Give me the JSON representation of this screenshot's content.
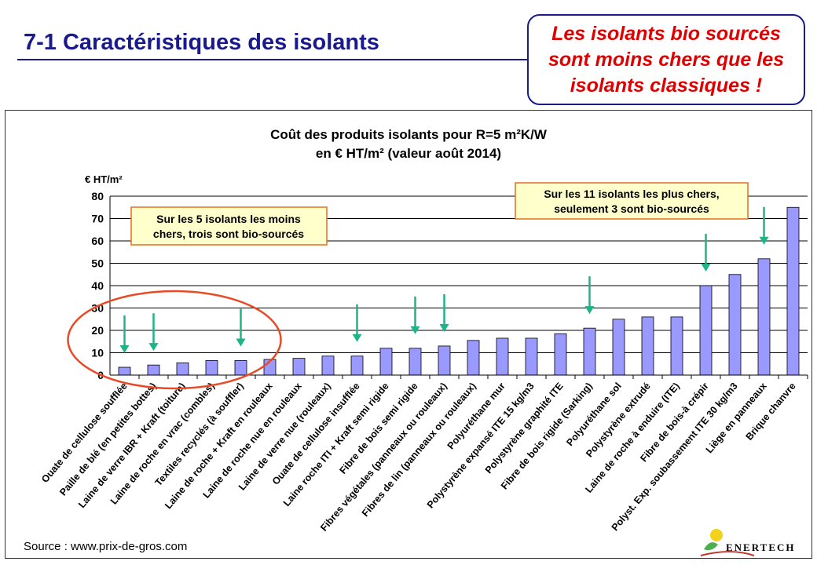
{
  "slide": {
    "title": "7-1 Caractéristiques des isolants",
    "callout_line1": "Les isolants bio sourcés",
    "callout_line2": "sont moins chers que les",
    "callout_line3": "isolants classiques !"
  },
  "footer": {
    "source": "Source : www.prix-de-gros.com",
    "logo_text": "ENERTECH"
  },
  "colors": {
    "bar": "#9999ff",
    "arrow": "#1fb38a",
    "ellipse": "#e84a25",
    "title": "#1a1a8c",
    "callout_text": "#e00000",
    "annotation_fill": "#ffffcc",
    "annotation_border": "#e07020"
  },
  "chart_data": {
    "type": "bar",
    "title_line1": "Coût des produits isolants pour R=5 m²K/W",
    "title_line2": "en € HT/m² (valeur août 2014)",
    "ylabel": "€ HT/m²",
    "ylim": [
      0,
      80
    ],
    "yticks": [
      0,
      10,
      20,
      30,
      40,
      50,
      60,
      70,
      80
    ],
    "grid": true,
    "categories": [
      "Ouate de cellulose soufflée",
      "Paille de blé (en petites bottes)",
      "Laine de verre IBR + Kraft (toiture)",
      "Laine de roche en vrac (combles)",
      "Textiles recyclés (à souffler)",
      "Laine de roche + Kraft en rouleaux",
      "Laine de roche nue en rouleaux",
      "Laine de verre nue (rouleaux)",
      "Ouate de cellulose insufflée",
      "Laine roche ITI + Kraft semi rigide",
      "Fibre de bois semi rigide",
      "Fibres végétales  (panneaux ou rouleaux)",
      "Fibres de lin (panneaux ou rouleaux)",
      "Polyuréthane mur",
      "Polystyrène expansé ITE 15 kg/m3",
      "Polystyrène graphité ITE",
      "Fibre de bois rigide (Sarking)",
      "Polyuréthane sol",
      "Polystyrène extrudé",
      "Laine de roche à enduire (ITE)",
      "Fibre de bois-à crépir",
      "Polyst. Exp. soubassement ITE 30 kg/m3",
      "Liège en panneaux",
      "Brique chanvre"
    ],
    "values": [
      3.5,
      4.5,
      5.5,
      6.5,
      6.5,
      7,
      7.5,
      8.5,
      8.5,
      12,
      12,
      13,
      15.5,
      16.5,
      16.5,
      18.5,
      21,
      25,
      26,
      26,
      40,
      45,
      52,
      75
    ],
    "bio_sourced_indices": [
      0,
      1,
      4,
      8,
      10,
      11,
      16,
      20,
      22
    ],
    "annotations": [
      {
        "line1": "Sur les 5 isolants les moins",
        "line2": "chers, trois sont bio-sourcés"
      },
      {
        "line1": "Sur les 11 isolants les plus chers,",
        "line2": "seulement 3 sont bio-sourcés"
      }
    ]
  }
}
